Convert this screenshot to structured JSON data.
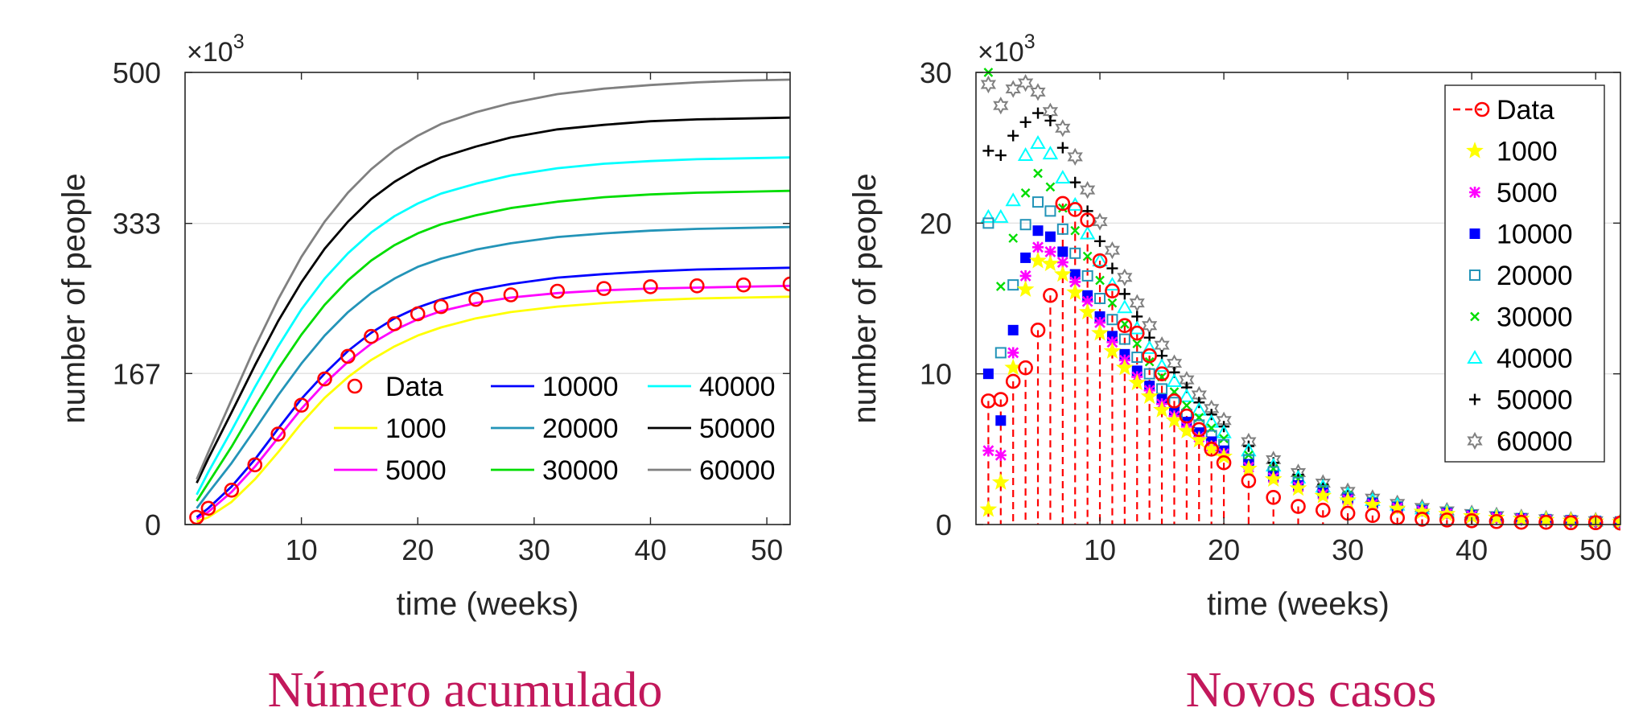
{
  "chart_data": [
    {
      "type": "line",
      "caption": "Número acumulado",
      "xlabel": "time (weeks)",
      "ylabel": "number of people",
      "y_multiplier": "×10^3",
      "xlim": [
        0,
        52
      ],
      "ylim": [
        0,
        500
      ],
      "xticks": [
        10,
        20,
        30,
        40,
        50
      ],
      "yticks": [
        0,
        167,
        333,
        500
      ],
      "ytick_labels": [
        "0",
        "167",
        "333",
        "500"
      ],
      "grid": "horizontal",
      "legend": {
        "placement": "lower-right",
        "columns": 3
      },
      "x": [
        1,
        2,
        4,
        6,
        8,
        10,
        12,
        14,
        16,
        18,
        20,
        22,
        25,
        28,
        32,
        36,
        40,
        44,
        48,
        52
      ],
      "series": [
        {
          "name": "Data",
          "style": "markers",
          "marker": "circle",
          "color": "#ff0000",
          "values": [
            8,
            18,
            38,
            66,
            100,
            132,
            161,
            186,
            208,
            222,
            233,
            241,
            249,
            254,
            258,
            261,
            263,
            264,
            265,
            266
          ]
        },
        {
          "name": "1000",
          "style": "line",
          "color": "#ffff00",
          "values": [
            3,
            8,
            25,
            50,
            80,
            112,
            140,
            163,
            182,
            197,
            209,
            218,
            228,
            235,
            241,
            245,
            248,
            250,
            251,
            252
          ]
        },
        {
          "name": "5000",
          "style": "line",
          "color": "#ff00ff",
          "values": [
            6,
            14,
            36,
            64,
            96,
            128,
            156,
            180,
            200,
            215,
            227,
            236,
            245,
            251,
            256,
            259,
            261,
            262,
            263,
            264
          ]
        },
        {
          "name": "10000",
          "style": "line",
          "color": "#0000ff",
          "values": [
            8,
            18,
            42,
            72,
            106,
            139,
            167,
            192,
            212,
            228,
            240,
            249,
            259,
            266,
            273,
            277,
            280,
            282,
            283,
            284
          ]
        },
        {
          "name": "20000",
          "style": "line",
          "color": "#2394b8",
          "values": [
            18,
            35,
            68,
            105,
            143,
            178,
            209,
            235,
            256,
            272,
            285,
            294,
            304,
            311,
            318,
            322,
            325,
            327,
            328,
            329
          ]
        },
        {
          "name": "30000",
          "style": "line",
          "color": "#00dd00",
          "values": [
            26,
            46,
            86,
            130,
            172,
            210,
            243,
            270,
            292,
            309,
            322,
            332,
            342,
            350,
            357,
            362,
            365,
            367,
            368,
            369
          ]
        },
        {
          "name": "40000",
          "style": "line",
          "color": "#00ffff",
          "values": [
            33,
            58,
            104,
            152,
            197,
            238,
            272,
            300,
            323,
            341,
            355,
            366,
            377,
            386,
            394,
            399,
            402,
            404,
            405,
            406
          ]
        },
        {
          "name": "50000",
          "style": "line",
          "color": "#000000",
          "values": [
            46,
            73,
            124,
            176,
            225,
            268,
            305,
            335,
            360,
            379,
            394,
            406,
            418,
            428,
            437,
            442,
            446,
            448,
            449,
            450
          ]
        },
        {
          "name": "60000",
          "style": "line",
          "color": "#808080",
          "values": [
            50,
            80,
            138,
            196,
            249,
            296,
            335,
            367,
            393,
            414,
            430,
            443,
            456,
            466,
            476,
            482,
            486,
            489,
            491,
            492
          ]
        }
      ]
    },
    {
      "type": "scatter",
      "caption": "Novos casos",
      "xlabel": "time (weeks)",
      "ylabel": "number of people",
      "y_multiplier": "×10^3",
      "xlim": [
        0,
        52
      ],
      "ylim": [
        0,
        30
      ],
      "xticks": [
        10,
        20,
        30,
        40,
        50
      ],
      "yticks": [
        0,
        10,
        20,
        30
      ],
      "ytick_labels": [
        "0",
        "10",
        "20",
        "30"
      ],
      "grid": "horizontal",
      "legend": {
        "placement": "top-right",
        "columns": 1
      },
      "x": [
        1,
        2,
        3,
        4,
        5,
        6,
        7,
        8,
        9,
        10,
        11,
        12,
        13,
        14,
        15,
        16,
        17,
        18,
        19,
        20,
        22,
        24,
        26,
        28,
        30,
        32,
        34,
        36,
        38,
        40,
        42,
        44,
        46,
        48,
        50,
        52
      ],
      "series": [
        {
          "name": "Data",
          "marker": "circle",
          "style": "markers+stems",
          "color": "#ff0000",
          "values": [
            8.2,
            8.3,
            9.5,
            10.4,
            12.9,
            15.2,
            21.3,
            20.9,
            20.2,
            17.5,
            15.5,
            13.2,
            12.7,
            11.2,
            10.0,
            8.2,
            7.2,
            6.3,
            5.0,
            4.1,
            2.9,
            1.8,
            1.2,
            0.95,
            0.75,
            0.6,
            0.45,
            0.35,
            0.3,
            0.25,
            0.2,
            0.15,
            0.15,
            0.12,
            0.12,
            0.1
          ]
        },
        {
          "name": "1000",
          "marker": "pentagram",
          "color": "#ffff00",
          "values": [
            1.0,
            2.8,
            10.4,
            15.6,
            17.5,
            17.3,
            16.6,
            15.4,
            14.1,
            12.7,
            11.5,
            10.4,
            9.4,
            8.5,
            7.6,
            6.9,
            6.2,
            5.6,
            5.0,
            4.5,
            3.7,
            3.0,
            2.4,
            1.9,
            1.6,
            1.3,
            1.05,
            0.85,
            0.7,
            0.55,
            0.45,
            0.38,
            0.3,
            0.25,
            0.2,
            0.17
          ]
        },
        {
          "name": "5000",
          "marker": "asterisk",
          "color": "#ff00ff",
          "values": [
            4.9,
            4.6,
            11.4,
            16.5,
            18.4,
            18.1,
            17.4,
            16.1,
            14.8,
            13.4,
            12.1,
            10.9,
            9.8,
            8.9,
            8.0,
            7.2,
            6.5,
            5.8,
            5.2,
            4.7,
            3.8,
            3.1,
            2.5,
            2.0,
            1.65,
            1.35,
            1.1,
            0.9,
            0.72,
            0.58,
            0.47,
            0.38,
            0.31,
            0.25,
            0.2,
            0.17
          ]
        },
        {
          "name": "10000",
          "marker": "square-filled",
          "color": "#0000ff",
          "values": [
            10.0,
            6.9,
            12.9,
            17.7,
            19.5,
            19.1,
            18.1,
            16.6,
            15.2,
            13.8,
            12.5,
            11.3,
            10.2,
            9.2,
            8.3,
            7.5,
            6.8,
            6.1,
            5.5,
            4.9,
            4.0,
            3.2,
            2.6,
            2.1,
            1.7,
            1.4,
            1.13,
            0.92,
            0.75,
            0.6,
            0.49,
            0.4,
            0.32,
            0.26,
            0.21,
            0.17
          ]
        },
        {
          "name": "20000",
          "marker": "square",
          "color": "#2394b8",
          "values": [
            20.0,
            11.4,
            15.9,
            19.9,
            21.4,
            20.8,
            19.6,
            18.0,
            16.5,
            15.0,
            13.6,
            12.3,
            11.1,
            10.0,
            9.0,
            8.1,
            7.3,
            6.6,
            5.9,
            5.3,
            4.3,
            3.5,
            2.8,
            2.25,
            1.8,
            1.45,
            1.17,
            0.95,
            0.77,
            0.62,
            0.5,
            0.4,
            0.33,
            0.27,
            0.22,
            0.18
          ]
        },
        {
          "name": "30000",
          "marker": "x",
          "color": "#00dd00",
          "values": [
            30.0,
            15.8,
            19.0,
            22.0,
            23.3,
            22.4,
            21.0,
            19.5,
            17.8,
            16.2,
            14.7,
            13.3,
            12.0,
            10.8,
            9.8,
            8.8,
            7.9,
            7.1,
            6.4,
            5.7,
            4.6,
            3.7,
            3.0,
            2.4,
            1.95,
            1.55,
            1.25,
            1.0,
            0.8,
            0.65,
            0.52,
            0.42,
            0.34,
            0.28,
            0.22,
            0.18
          ]
        },
        {
          "name": "40000",
          "marker": "triangle",
          "color": "#00ffff",
          "values": [
            20.4,
            20.4,
            21.5,
            24.5,
            25.3,
            24.6,
            23.0,
            21.2,
            19.3,
            17.5,
            15.9,
            14.4,
            13.0,
            11.7,
            10.5,
            9.5,
            8.5,
            7.6,
            6.8,
            6.1,
            4.9,
            3.9,
            3.1,
            2.5,
            2.0,
            1.6,
            1.3,
            1.05,
            0.84,
            0.68,
            0.55,
            0.44,
            0.36,
            0.29,
            0.23,
            0.19
          ]
        },
        {
          "name": "50000",
          "marker": "plus",
          "color": "#000000",
          "values": [
            24.8,
            24.5,
            25.8,
            26.7,
            27.3,
            26.8,
            25.0,
            22.7,
            20.8,
            18.8,
            17.0,
            15.3,
            13.8,
            12.4,
            11.2,
            10.1,
            9.1,
            8.1,
            7.3,
            6.5,
            5.2,
            4.1,
            3.3,
            2.65,
            2.1,
            1.7,
            1.36,
            1.1,
            0.88,
            0.7,
            0.57,
            0.46,
            0.37,
            0.3,
            0.24,
            0.2
          ]
        },
        {
          "name": "60000",
          "marker": "hexagram",
          "color": "#808080",
          "values": [
            29.2,
            27.8,
            28.9,
            29.3,
            28.7,
            27.4,
            26.3,
            24.4,
            22.2,
            20.1,
            18.2,
            16.4,
            14.7,
            13.2,
            11.9,
            10.7,
            9.6,
            8.6,
            7.7,
            6.9,
            5.5,
            4.3,
            3.45,
            2.75,
            2.2,
            1.75,
            1.4,
            1.13,
            0.91,
            0.73,
            0.59,
            0.47,
            0.38,
            0.31,
            0.25,
            0.2
          ]
        }
      ]
    }
  ]
}
